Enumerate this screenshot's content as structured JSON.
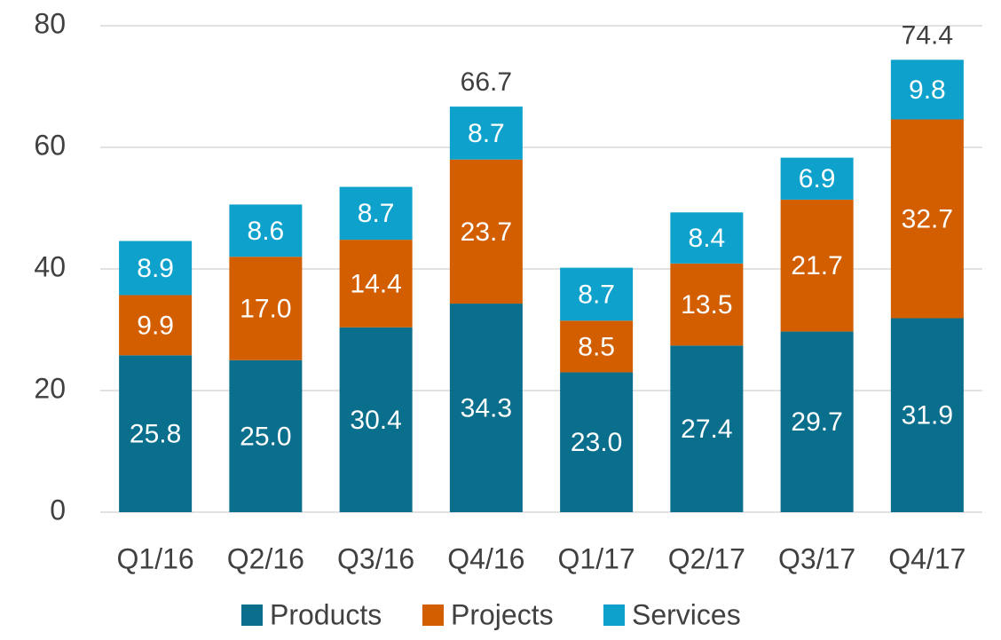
{
  "chart_data": {
    "type": "stacked_bar",
    "categories": [
      "Q1/16",
      "Q2/16",
      "Q3/16",
      "Q4/16",
      "Q1/17",
      "Q2/17",
      "Q3/17",
      "Q4/17"
    ],
    "series": [
      {
        "name": "Products",
        "color": "#0a6f8c",
        "values": [
          25.8,
          25.0,
          30.4,
          34.3,
          23.0,
          27.4,
          29.7,
          31.9
        ],
        "value_labels": [
          "25.8",
          "25.0",
          "30.4",
          "34.3",
          "23.0",
          "27.4",
          "29.7",
          "31.9"
        ]
      },
      {
        "name": "Projects",
        "color": "#d35e00",
        "values": [
          9.9,
          17.0,
          14.4,
          23.7,
          8.5,
          13.5,
          21.7,
          32.7
        ],
        "value_labels": [
          "9.9",
          "17.0",
          "14.4",
          "23.7",
          "8.5",
          "13.5",
          "21.7",
          "32.7"
        ]
      },
      {
        "name": "Services",
        "color": "#0ea1cc",
        "values": [
          8.9,
          8.6,
          8.7,
          8.7,
          8.7,
          8.4,
          6.9,
          9.8
        ],
        "value_labels": [
          "8.9",
          "8.6",
          "8.7",
          "8.7",
          "8.7",
          "8.4",
          "6.9",
          "9.8"
        ]
      }
    ],
    "total_labels": [
      null,
      null,
      null,
      66.7,
      null,
      null,
      null,
      74.4
    ],
    "ylim": [
      0,
      80
    ],
    "yticks": [
      0,
      20,
      40,
      60,
      80
    ],
    "grid": true,
    "legend": "bottom"
  }
}
